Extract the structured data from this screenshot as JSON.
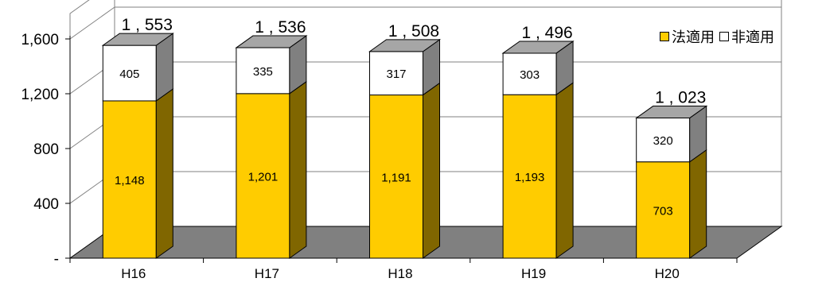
{
  "chart_data": {
    "type": "bar",
    "stacked": true,
    "three_d": true,
    "categories": [
      "H16",
      "H17",
      "H18",
      "H19",
      "H20"
    ],
    "series": [
      {
        "name": "法適用",
        "values": [
          1148,
          1201,
          1191,
          1193,
          703
        ],
        "labels": [
          "1,148",
          "1,201",
          "1,191",
          "1,193",
          "703"
        ],
        "color": "#ffcc00",
        "side_color": "#806600"
      },
      {
        "name": "非適用",
        "values": [
          405,
          335,
          317,
          303,
          320
        ],
        "labels": [
          "405",
          "335",
          "317",
          "303",
          "320"
        ],
        "color": "#ffffff",
        "side_color": "#808080"
      }
    ],
    "totals": [
      1553,
      1536,
      1508,
      1496,
      1023
    ],
    "total_labels": [
      "1 , 553",
      "1 , 536",
      "1 , 508",
      "1 , 496",
      "1 , 023"
    ],
    "yticks": [
      0,
      400,
      800,
      1200,
      1600
    ],
    "ytick_labels": [
      "-",
      "400",
      "800",
      "1,200",
      "1,600"
    ],
    "ylim": [
      0,
      1600
    ],
    "gridlines": true,
    "legend_position": "top-right",
    "floor_color": "#808080",
    "bar_top_color": "#a6a6a6"
  }
}
